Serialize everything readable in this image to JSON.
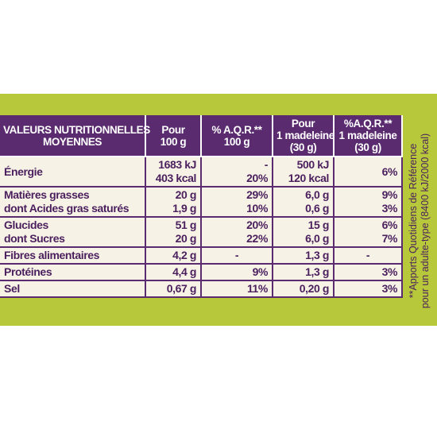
{
  "table": {
    "header": [
      [
        "VALEURS NUTRITIONNELLES",
        "MOYENNES"
      ],
      [
        "Pour",
        "100 g"
      ],
      [
        "% A.Q.R.**",
        "100 g"
      ],
      [
        "Pour",
        "1 madeleine",
        "(30 g)"
      ],
      [
        "%A.Q.R.**",
        "1 madeleine",
        "(30 g)"
      ]
    ],
    "rows": [
      [
        [
          "Énergie"
        ],
        [
          "1683 kJ",
          "403 kcal"
        ],
        [
          "-",
          "20%"
        ],
        [
          "500 kJ",
          "120 kcal"
        ],
        [
          "6%"
        ]
      ],
      [
        [
          "Matières grasses",
          "dont Acides gras saturés"
        ],
        [
          "20 g",
          "1,9 g"
        ],
        [
          "29%",
          "10%"
        ],
        [
          "6,0 g",
          "0,6 g"
        ],
        [
          "9%",
          "3%"
        ]
      ],
      [
        [
          "Glucides",
          "dont Sucres"
        ],
        [
          "51 g",
          "20 g"
        ],
        [
          "20%",
          "22%"
        ],
        [
          "15 g",
          "6,0 g"
        ],
        [
          "6%",
          "7%"
        ]
      ],
      [
        [
          "Fibres alimentaires"
        ],
        [
          "4,2 g"
        ],
        [
          "-"
        ],
        [
          "1,3 g"
        ],
        [
          "-"
        ]
      ],
      [
        [
          "Protéines"
        ],
        [
          "4,4 g"
        ],
        [
          "9%"
        ],
        [
          "1,3 g"
        ],
        [
          "3%"
        ]
      ],
      [
        [
          "Sel"
        ],
        [
          "0,67 g"
        ],
        [
          "11%"
        ],
        [
          "0,20 g"
        ],
        [
          "3%"
        ]
      ]
    ]
  },
  "footnote": [
    "**Apports Quotidiens de Référence",
    "pour un adulte-type (8400 kJ/2000 kcal)"
  ]
}
